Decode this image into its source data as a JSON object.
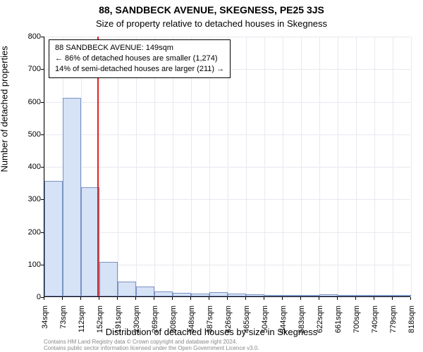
{
  "title_main": "88, SANDBECK AVENUE, SKEGNESS, PE25 3JS",
  "title_sub": "Size of property relative to detached houses in Skegness",
  "chart": {
    "type": "histogram",
    "y_axis_label": "Number of detached properties",
    "x_axis_label": "Distribution of detached houses by size in Skegness",
    "ylim": [
      0,
      800
    ],
    "ytick_step": 100,
    "y_ticks": [
      0,
      100,
      200,
      300,
      400,
      500,
      600,
      700,
      800
    ],
    "x_ticks": [
      "34sqm",
      "73sqm",
      "112sqm",
      "152sqm",
      "191sqm",
      "230sqm",
      "269sqm",
      "308sqm",
      "348sqm",
      "387sqm",
      "426sqm",
      "465sqm",
      "504sqm",
      "544sqm",
      "583sqm",
      "622sqm",
      "661sqm",
      "700sqm",
      "740sqm",
      "779sqm",
      "818sqm"
    ],
    "x_tick_positions": [
      34,
      73,
      112,
      152,
      191,
      230,
      269,
      308,
      348,
      387,
      426,
      465,
      504,
      544,
      583,
      622,
      661,
      700,
      740,
      779,
      818
    ],
    "x_range": [
      34,
      818
    ],
    "bars": [
      {
        "center": 53.5,
        "value": 355
      },
      {
        "center": 92.5,
        "value": 610
      },
      {
        "center": 132,
        "value": 335
      },
      {
        "center": 171.5,
        "value": 105
      },
      {
        "center": 210.5,
        "value": 45
      },
      {
        "center": 249.5,
        "value": 30
      },
      {
        "center": 288.5,
        "value": 15
      },
      {
        "center": 328,
        "value": 10
      },
      {
        "center": 367.5,
        "value": 8
      },
      {
        "center": 406.5,
        "value": 12
      },
      {
        "center": 445.5,
        "value": 8
      },
      {
        "center": 484.5,
        "value": 6
      },
      {
        "center": 524,
        "value": 5
      },
      {
        "center": 563.5,
        "value": 5
      },
      {
        "center": 602.5,
        "value": 4
      },
      {
        "center": 641.5,
        "value": 7
      },
      {
        "center": 680.5,
        "value": 3
      },
      {
        "center": 720,
        "value": 4
      },
      {
        "center": 759.5,
        "value": 3
      },
      {
        "center": 798.5,
        "value": 3
      }
    ],
    "bar_color": "#d6e2f5",
    "bar_border_color": "#7a92c4",
    "bar_width_units": 39,
    "background_color": "#ffffff",
    "grid_color": "#e8e8f0",
    "reference_line_x": 149,
    "reference_line_color": "#e02020"
  },
  "info_box": {
    "line1": "88 SANDBECK AVENUE: 149sqm",
    "line2": "← 86% of detached houses are smaller (1,274)",
    "line3": "14% of semi-detached houses are larger (211) →",
    "border_color": "#000000",
    "bg_color": "#ffffff",
    "fontsize": 11
  },
  "footer": {
    "line1": "Contains HM Land Registry data © Crown copyright and database right 2024.",
    "line2": "Contains public sector information licensed under the Open Government Licence v3.0."
  }
}
